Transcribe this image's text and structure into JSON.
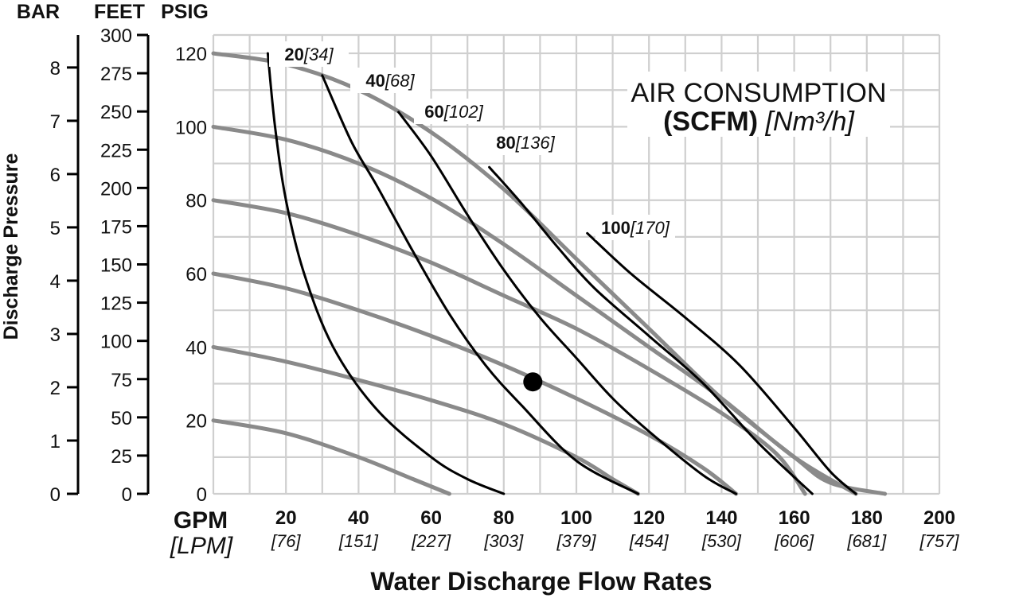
{
  "chart_data": {
    "type": "line",
    "title": "AIR CONSUMPTION",
    "title_line2_bold": "(SCFM)",
    "title_line2_italic": "[Nm³/h]",
    "xlabel": "Water Discharge Flow Rates",
    "ylabel": "Discharge Pressure",
    "x_unit_primary": "GPM",
    "x_unit_secondary": "[LPM]",
    "y_unit_headers": [
      "BAR",
      "FEET",
      "PSIG"
    ],
    "xlim": [
      0,
      200
    ],
    "ylim": [
      0,
      125
    ],
    "grid": true,
    "x_ticks": [
      {
        "value": 20,
        "label": "20",
        "sub": "[76]"
      },
      {
        "value": 40,
        "label": "40",
        "sub": "[151]"
      },
      {
        "value": 60,
        "label": "60",
        "sub": "[227]"
      },
      {
        "value": 80,
        "label": "80",
        "sub": "[303]"
      },
      {
        "value": 100,
        "label": "100",
        "sub": "[379]"
      },
      {
        "value": 120,
        "label": "120",
        "sub": "[454]"
      },
      {
        "value": 140,
        "label": "140",
        "sub": "[530]"
      },
      {
        "value": 160,
        "label": "160",
        "sub": "[606]"
      },
      {
        "value": 180,
        "label": "180",
        "sub": "[681]"
      },
      {
        "value": 200,
        "label": "200",
        "sub": "[757]"
      }
    ],
    "psig_ticks": [
      {
        "value": 0,
        "label": "0"
      },
      {
        "value": 20,
        "label": "20"
      },
      {
        "value": 40,
        "label": "40"
      },
      {
        "value": 60,
        "label": "60"
      },
      {
        "value": 80,
        "label": "80"
      },
      {
        "value": 100,
        "label": "100"
      },
      {
        "value": 120,
        "label": "120"
      }
    ],
    "feet_ticks": [
      {
        "value": 0,
        "label": "0"
      },
      {
        "value": 25,
        "label": "25"
      },
      {
        "value": 50,
        "label": "50"
      },
      {
        "value": 75,
        "label": "75"
      },
      {
        "value": 100,
        "label": "100"
      },
      {
        "value": 125,
        "label": "125"
      },
      {
        "value": 150,
        "label": "150"
      },
      {
        "value": 175,
        "label": "175"
      },
      {
        "value": 200,
        "label": "200"
      },
      {
        "value": 225,
        "label": "225"
      },
      {
        "value": 250,
        "label": "250"
      },
      {
        "value": 275,
        "label": "275"
      },
      {
        "value": 300,
        "label": "300"
      }
    ],
    "bar_ticks": [
      {
        "value": 0,
        "label": "0"
      },
      {
        "value": 1,
        "label": "1"
      },
      {
        "value": 2,
        "label": "2"
      },
      {
        "value": 3,
        "label": "3"
      },
      {
        "value": 4,
        "label": "4"
      },
      {
        "value": 5,
        "label": "5"
      },
      {
        "value": 6,
        "label": "6"
      },
      {
        "value": 7,
        "label": "7"
      },
      {
        "value": 8,
        "label": "8"
      }
    ],
    "performance_curves": [
      {
        "inlet_psig": 120,
        "points": [
          [
            0,
            120
          ],
          [
            20,
            117
          ],
          [
            40,
            110
          ],
          [
            60,
            98.5
          ],
          [
            80,
            83
          ],
          [
            100,
            64
          ],
          [
            120,
            45
          ],
          [
            140,
            26
          ],
          [
            160,
            10
          ],
          [
            170,
            3
          ],
          [
            185,
            0
          ]
        ]
      },
      {
        "inlet_psig": 100,
        "points": [
          [
            0,
            100
          ],
          [
            20,
            96.5
          ],
          [
            40,
            90
          ],
          [
            60,
            80.5
          ],
          [
            80,
            68
          ],
          [
            100,
            54
          ],
          [
            120,
            40
          ],
          [
            140,
            26
          ],
          [
            160,
            10
          ],
          [
            177,
            0
          ]
        ]
      },
      {
        "inlet_psig": 80,
        "points": [
          [
            0,
            80
          ],
          [
            20,
            76.5
          ],
          [
            40,
            70.5
          ],
          [
            60,
            63
          ],
          [
            80,
            54
          ],
          [
            100,
            45
          ],
          [
            120,
            34
          ],
          [
            140,
            22
          ],
          [
            155,
            11
          ],
          [
            163,
            0
          ]
        ]
      },
      {
        "inlet_psig": 60,
        "points": [
          [
            0,
            60
          ],
          [
            20,
            56
          ],
          [
            40,
            50
          ],
          [
            60,
            43
          ],
          [
            80,
            35
          ],
          [
            100,
            26
          ],
          [
            120,
            16
          ],
          [
            135,
            7
          ],
          [
            144,
            0
          ]
        ]
      },
      {
        "inlet_psig": 40,
        "points": [
          [
            0,
            40
          ],
          [
            20,
            36
          ],
          [
            40,
            31
          ],
          [
            60,
            25.5
          ],
          [
            80,
            19
          ],
          [
            100,
            10
          ],
          [
            110,
            4
          ],
          [
            117,
            0
          ]
        ]
      },
      {
        "inlet_psig": 20,
        "points": [
          [
            0,
            20
          ],
          [
            20,
            16.5
          ],
          [
            40,
            10
          ],
          [
            55,
            4
          ],
          [
            65,
            0
          ]
        ]
      }
    ],
    "air_consumption_curves": [
      {
        "label_bold": "20",
        "label_italic": "[34]",
        "points": [
          [
            15,
            120
          ],
          [
            17,
            100
          ],
          [
            20,
            80
          ],
          [
            25,
            60
          ],
          [
            33,
            40
          ],
          [
            45,
            23
          ],
          [
            60,
            10
          ],
          [
            70,
            4
          ],
          [
            80,
            0
          ]
        ]
      },
      {
        "label_bold": "40",
        "label_italic": "[68]",
        "points": [
          [
            30,
            114
          ],
          [
            38,
            96
          ],
          [
            45,
            84
          ],
          [
            55,
            66
          ],
          [
            65,
            49
          ],
          [
            75,
            35
          ],
          [
            85,
            24
          ],
          [
            100,
            9
          ],
          [
            117,
            0
          ]
        ]
      },
      {
        "label_bold": "60",
        "label_italic": "[102]",
        "points": [
          [
            51,
            104
          ],
          [
            60,
            92
          ],
          [
            70,
            76
          ],
          [
            80,
            61
          ],
          [
            90,
            48
          ],
          [
            100,
            37
          ],
          [
            110,
            26
          ],
          [
            120,
            17
          ],
          [
            135,
            5
          ],
          [
            144,
            0
          ]
        ]
      },
      {
        "label_bold": "80",
        "label_italic": "[136]",
        "points": [
          [
            76,
            89
          ],
          [
            85,
            79
          ],
          [
            95,
            67
          ],
          [
            105,
            56
          ],
          [
            120,
            43
          ],
          [
            135,
            30
          ],
          [
            150,
            14
          ],
          [
            165,
            0
          ]
        ]
      },
      {
        "label_bold": "100",
        "label_italic": "[170]",
        "points": [
          [
            103,
            71
          ],
          [
            115,
            60
          ],
          [
            130,
            48
          ],
          [
            145,
            35
          ],
          [
            160,
            18
          ],
          [
            170,
            6
          ],
          [
            177,
            0
          ]
        ]
      }
    ],
    "operating_point": {
      "x": 88,
      "y": 30.5
    }
  }
}
